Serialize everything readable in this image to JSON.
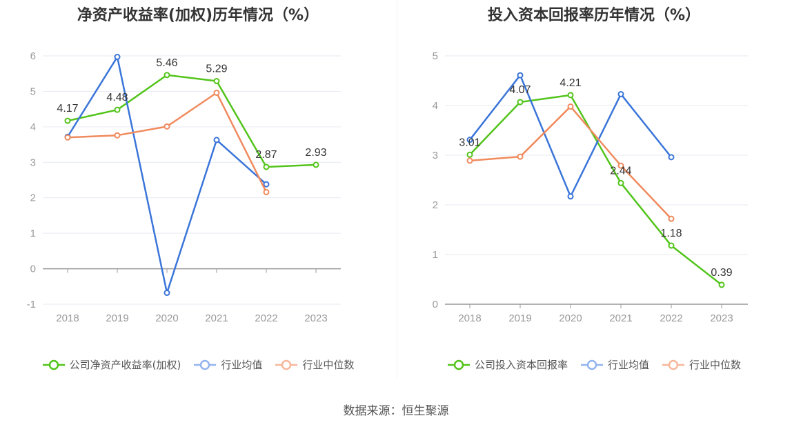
{
  "chart_data": [
    {
      "type": "line",
      "title": "净资产收益率(加权)历年情况（%）",
      "categories": [
        "2018",
        "2019",
        "2020",
        "2021",
        "2022",
        "2023"
      ],
      "ylim": [
        -1,
        6
      ],
      "yticks": [
        "-1",
        "0",
        "1",
        "2",
        "3",
        "4",
        "5",
        "6"
      ],
      "grid": true,
      "legend_position": "bottom",
      "series": [
        {
          "name": "公司净资产收益率(加权)",
          "color": "#52c41a",
          "values": [
            4.17,
            4.48,
            5.46,
            5.29,
            2.87,
            2.93
          ],
          "labels": [
            "4.17",
            "4.48",
            "5.46",
            "5.29",
            "2.87",
            "2.93"
          ]
        },
        {
          "name": "行业均值",
          "color": "#3a75d9",
          "values": [
            3.72,
            5.97,
            -0.68,
            3.63,
            2.38,
            null
          ]
        },
        {
          "name": "行业中位数",
          "color": "#f08a5d",
          "values": [
            3.7,
            3.76,
            4.01,
            4.96,
            2.16,
            null
          ]
        }
      ]
    },
    {
      "type": "line",
      "title": "投入资本回报率历年情况（%）",
      "categories": [
        "2018",
        "2019",
        "2020",
        "2021",
        "2022",
        "2023"
      ],
      "ylim": [
        0,
        5
      ],
      "yticks": [
        "0",
        "1",
        "2",
        "3",
        "4",
        "5"
      ],
      "grid": true,
      "legend_position": "bottom",
      "series": [
        {
          "name": "公司投入资本回报率",
          "color": "#52c41a",
          "values": [
            3.01,
            4.07,
            4.21,
            2.44,
            1.18,
            0.39
          ],
          "labels": [
            "3.01",
            "4.07",
            "4.21",
            "2.44",
            "1.18",
            "0.39"
          ]
        },
        {
          "name": "行业均值",
          "color": "#3a75d9",
          "values": [
            3.31,
            4.61,
            2.17,
            4.23,
            2.96,
            null
          ]
        },
        {
          "name": "行业中位数",
          "color": "#f08a5d",
          "values": [
            2.89,
            2.97,
            3.98,
            2.79,
            1.72,
            null
          ]
        }
      ]
    }
  ],
  "footer": {
    "source": "数据来源：恒生聚源"
  }
}
